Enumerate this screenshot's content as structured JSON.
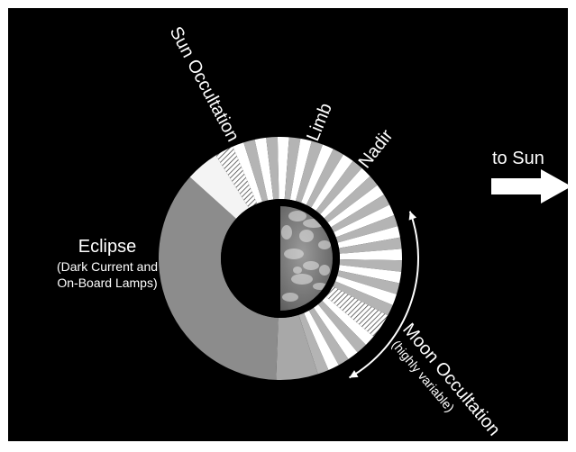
{
  "colors": {
    "background": "#000000",
    "frame": "#ffffff",
    "eclipse": "#8c8c8c",
    "stripe_light": "#b4b4b4",
    "stripe_white": "#ffffff",
    "sun_white": "#f4f4f4",
    "hatch_bg": "#ffffff",
    "hatch_line": "#333333",
    "bottom_gray": "#a8a8a8",
    "earth_base": "#6e6e6e",
    "earth_cloud": "#e8e8e8",
    "text": "#ffffff"
  },
  "labels": {
    "sun_occultation": "Sun Occultation",
    "limb": "Limb",
    "nadir": "Nadir",
    "eclipse": "Eclipse",
    "eclipse_detail_line1": "(Dark Current and",
    "eclipse_detail_line2": "On-Board Lamps)",
    "moon_occultation": "Moon Occultation",
    "moon_detail": "(highly variable)",
    "to_sun": "to Sun"
  },
  "icons": {
    "sun_arrow": "right-arrow-icon",
    "moon_range": "double-headed-curved-arrow-icon"
  }
}
